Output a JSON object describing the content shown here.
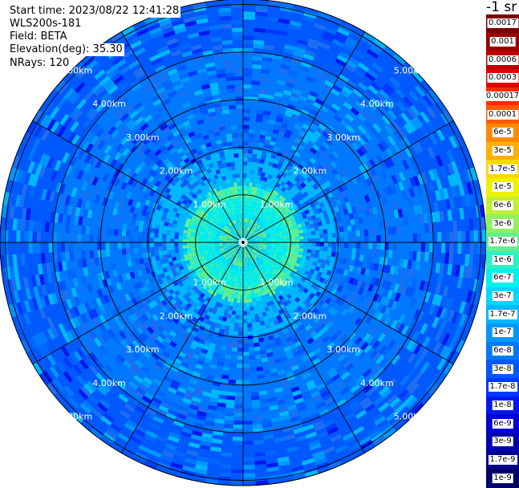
{
  "header": {
    "start_time": "Start time: 2023/08/22 12:41:28",
    "device": "WLS200s-181",
    "field": "Field: BETA",
    "elevation": "Elevation(deg): 35.30",
    "nrays": "NRays: 120"
  },
  "colorbar": {
    "unit": "-1 sr",
    "ticks": [
      {
        "label": "0.0017",
        "color": "#7a0000"
      },
      {
        "label": "0.001",
        "color": "#9a0000"
      },
      {
        "label": "0.0006",
        "color": "#bb0000"
      },
      {
        "label": "0.0003",
        "color": "#e00000"
      },
      {
        "label": "0.00017",
        "color": "#ff2a00"
      },
      {
        "label": "0.0001",
        "color": "#ff5a00"
      },
      {
        "label": "6e-5",
        "color": "#ff8a00"
      },
      {
        "label": "3e-5",
        "color": "#ffb000"
      },
      {
        "label": "1.7e-5",
        "color": "#ffd800"
      },
      {
        "label": "1e-5",
        "color": "#f0f000"
      },
      {
        "label": "6e-6",
        "color": "#c0f030"
      },
      {
        "label": "3e-6",
        "color": "#90f060"
      },
      {
        "label": "1.7e-6",
        "color": "#60f090"
      },
      {
        "label": "1e-6",
        "color": "#30f0c0"
      },
      {
        "label": "6e-7",
        "color": "#00f0f0"
      },
      {
        "label": "3e-7",
        "color": "#00d8ff"
      },
      {
        "label": "1.7e-7",
        "color": "#00b8ff"
      },
      {
        "label": "1e-7",
        "color": "#0098ff"
      },
      {
        "label": "6e-8",
        "color": "#0078ff"
      },
      {
        "label": "3e-8",
        "color": "#0058ff"
      },
      {
        "label": "1.7e-8",
        "color": "#0038ff"
      },
      {
        "label": "1e-8",
        "color": "#0018f0"
      },
      {
        "label": "6e-9",
        "color": "#0000d8"
      },
      {
        "label": "3e-9",
        "color": "#0000b0"
      },
      {
        "label": "1.7e-9",
        "color": "#00008a"
      },
      {
        "label": "1e-9",
        "color": "#000066"
      }
    ]
  },
  "chart_data": {
    "type": "polar-heatmap",
    "field": "BETA",
    "elevation_deg": 35.3,
    "nrays": 120,
    "range_unit": "km",
    "range_max_km": 5.5,
    "range_rings_km": [
      1,
      2,
      3,
      4,
      5
    ],
    "range_ring_labels": [
      "1.00km",
      "2.00km",
      "3.00km",
      "4.00km",
      "5.00km"
    ],
    "spoke_angles_deg": [
      0,
      30,
      60,
      90,
      120,
      150,
      180,
      210,
      240,
      270,
      300,
      330
    ],
    "profile": [
      {
        "range_km": 0.2,
        "beta": "1.7e-6"
      },
      {
        "range_km": 0.5,
        "beta": "6e-7"
      },
      {
        "range_km": 0.9,
        "beta": "1.7e-6"
      },
      {
        "range_km": 1.3,
        "beta": "1.7e-7"
      },
      {
        "range_km": 2.0,
        "beta": "6e-8"
      },
      {
        "range_km": 3.0,
        "beta": "6e-8"
      },
      {
        "range_km": 4.0,
        "beta": "3e-8"
      },
      {
        "range_km": 5.0,
        "beta": "3e-8"
      }
    ],
    "colors": {
      "ring_color": "#000000",
      "label_color": "#ffffff"
    }
  }
}
